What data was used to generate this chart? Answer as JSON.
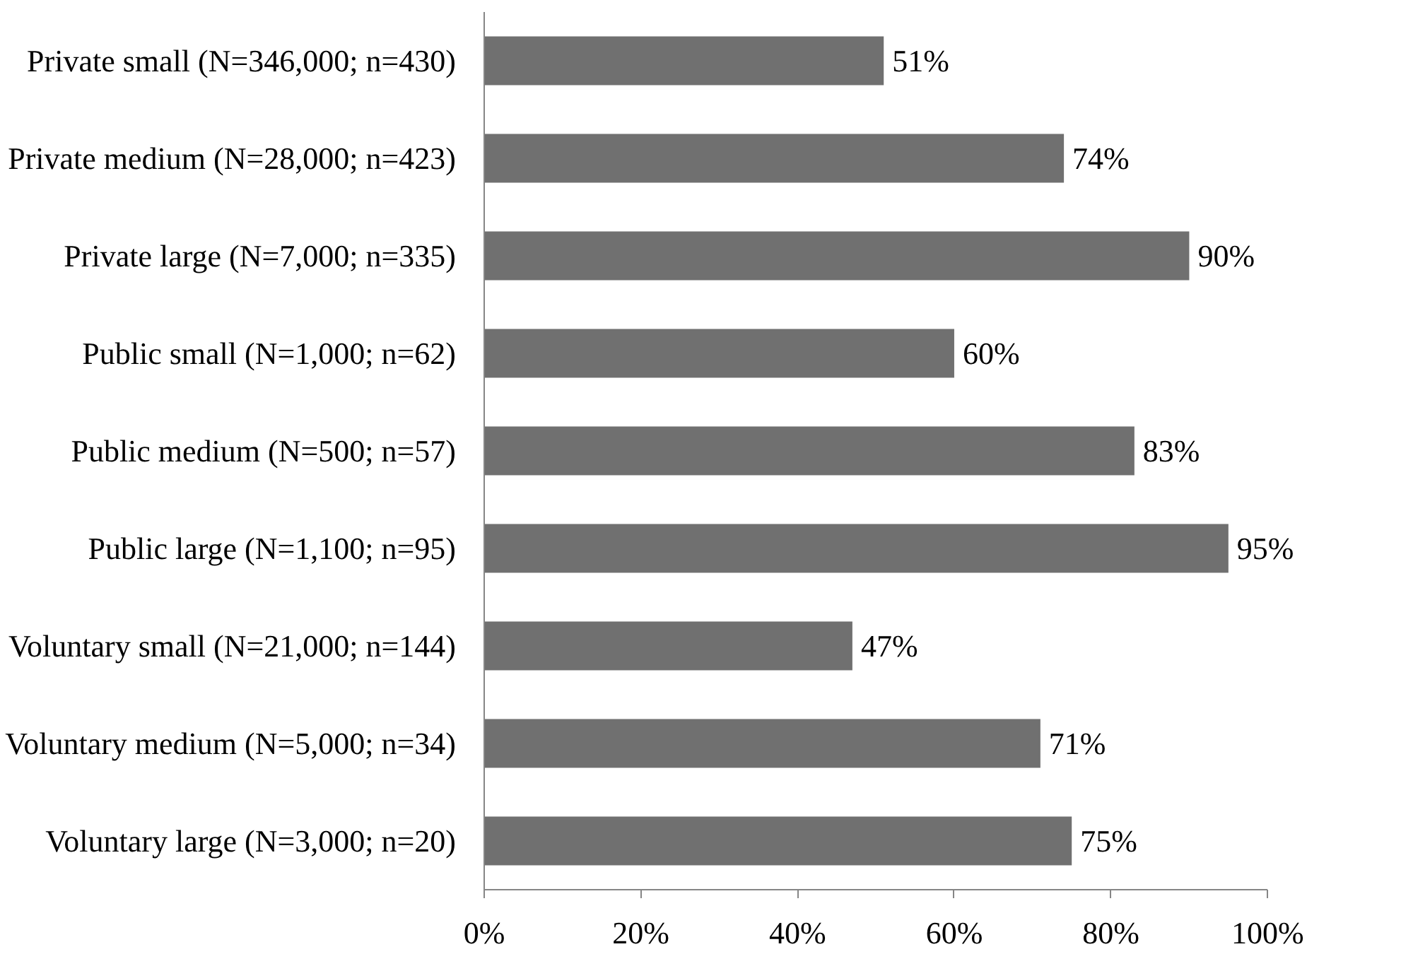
{
  "chart_data": {
    "type": "bar",
    "orientation": "horizontal",
    "categories": [
      "Private small (N=346,000; n=430)",
      "Private medium (N=28,000; n=423)",
      "Private large (N=7,000; n=335)",
      "Public small (N=1,000; n=62)",
      "Public medium (N=500; n=57)",
      "Public large (N=1,100; n=95)",
      "Voluntary small (N=21,000; n=144)",
      "Voluntary medium (N=5,000; n=34)",
      "Voluntary large (N=3,000; n=20)"
    ],
    "values": [
      51,
      74,
      90,
      60,
      83,
      95,
      47,
      71,
      75
    ],
    "value_labels": [
      "51%",
      "74%",
      "90%",
      "60%",
      "83%",
      "95%",
      "47%",
      "71%",
      "75%"
    ],
    "color": "#707070",
    "xlim": [
      0,
      100
    ],
    "xticks": [
      {
        "value": 0,
        "label": "0%"
      },
      {
        "value": 20,
        "label": "20%"
      },
      {
        "value": 40,
        "label": "40%"
      },
      {
        "value": 60,
        "label": "60%"
      },
      {
        "value": 80,
        "label": "80%"
      },
      {
        "value": 100,
        "label": "100%"
      }
    ],
    "grid": false,
    "legend": false
  }
}
